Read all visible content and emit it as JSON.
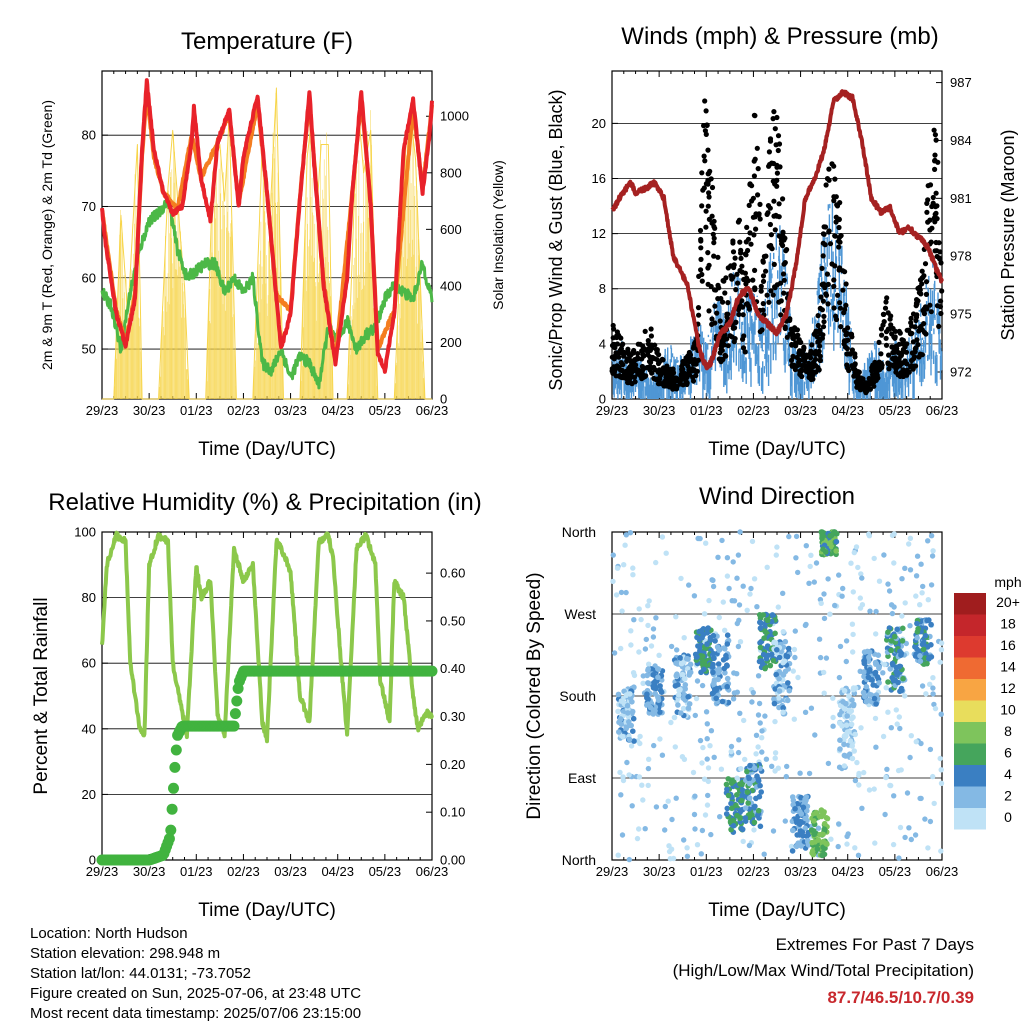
{
  "palette": {
    "temp2m": "#e8222a",
    "temp9m": "#f47d20",
    "dew": "#4cb847",
    "solar": "#f7d54a",
    "sonic": "#4f97d5",
    "gust": "#000000",
    "pressure": "#a52121",
    "rh": "#8cc84b",
    "precip": "#41b33f",
    "extreme": "#c8282d"
  },
  "info": {
    "location": "Location: North Hudson",
    "elevation": "Station elevation: 298.948 m",
    "latlon": "Station lat/lon: 44.0131; -73.7052",
    "created": "Figure created on Sun, 2025-07-06, at 23:48 UTC",
    "recent": "Most recent data timestamp: 2025/07/06 23:15:00"
  },
  "extremes": {
    "line1": "Extremes For Past 7 Days",
    "line2": "(High/Low/Max Wind/Total Precipitation)",
    "values": "87.7/46.5/10.7/0.39"
  },
  "chart_data": [
    {
      "type": "line",
      "title": "Temperature (F)",
      "xlabel": "Time (Day/UTC)",
      "ylabel": "2m & 9m T (Red, Orange) & 2m Td (Green)",
      "y2label": "Solar Insolation (Yellow)",
      "x_ticks": [
        "29/23",
        "30/23",
        "01/23",
        "02/23",
        "03/23",
        "04/23",
        "05/23",
        "06/23"
      ],
      "y_ticks": [
        50,
        60,
        70,
        80
      ],
      "y2_ticks": [
        0,
        200,
        400,
        600,
        800,
        1000
      ],
      "ylim": [
        43,
        89
      ],
      "y2lim": [
        0,
        1160
      ],
      "xlim": [
        0,
        7
      ],
      "series": [
        {
          "name": "2m T",
          "axis": "left",
          "x": [
            0,
            0.05,
            0.3,
            0.5,
            0.7,
            0.85,
            0.95,
            1.1,
            1.3,
            1.5,
            1.7,
            1.9,
            1.95,
            2.1,
            2.3,
            2.45,
            2.7,
            2.9,
            3.0,
            3.3,
            3.5,
            3.7,
            3.8,
            4.0,
            4.2,
            4.4,
            4.5,
            4.7,
            4.95,
            5.2,
            5.3,
            5.5,
            5.7,
            5.85,
            6.0,
            6.2,
            6.4,
            6.6,
            6.8,
            6.95,
            7
          ],
          "values": [
            70,
            66,
            55,
            50.5,
            57,
            78,
            87.5,
            78,
            72,
            69,
            70,
            79,
            84,
            74,
            68,
            79,
            83.5,
            70,
            77,
            85.5,
            72,
            57,
            50,
            55,
            71,
            86,
            76,
            59,
            48,
            60,
            71,
            86,
            70,
            49.5,
            47,
            55,
            78,
            85,
            72,
            80,
            85
          ]
        },
        {
          "name": "9m T",
          "axis": "left",
          "x": [
            0,
            0.3,
            0.5,
            0.7,
            0.85,
            0.95,
            1.1,
            1.3,
            1.6,
            1.9,
            2.1,
            2.45,
            2.7,
            2.9,
            3.3,
            3.5,
            3.7,
            4.0,
            4.2,
            4.4,
            4.7,
            4.95,
            5.3,
            5.5,
            5.7,
            5.85,
            6.2,
            6.6,
            6.8,
            7
          ],
          "values": [
            69.5,
            55.5,
            51,
            57.5,
            77,
            86,
            77,
            72,
            69.5,
            80,
            74,
            79,
            83,
            70.5,
            84.5,
            72,
            57.5,
            55.5,
            71.5,
            85,
            59.5,
            48.5,
            71.5,
            85,
            70.5,
            50,
            55.5,
            84,
            72.5,
            84
          ]
        },
        {
          "name": "2m Td",
          "axis": "left",
          "x": [
            0,
            0.2,
            0.4,
            0.6,
            0.8,
            1.0,
            1.2,
            1.4,
            1.6,
            1.8,
            2.0,
            2.2,
            2.4,
            2.6,
            2.8,
            3.0,
            3.2,
            3.4,
            3.6,
            3.8,
            4.0,
            4.2,
            4.4,
            4.6,
            4.8,
            5.0,
            5.2,
            5.4,
            5.6,
            5.8,
            6.0,
            6.2,
            6.4,
            6.6,
            6.8,
            7
          ],
          "values": [
            58,
            56,
            50,
            58,
            64,
            68,
            69,
            71,
            64,
            60,
            61,
            62,
            62,
            58,
            60,
            58,
            60,
            48,
            47,
            50,
            46,
            49,
            48,
            45,
            53,
            51,
            54,
            50,
            52,
            53,
            57,
            59,
            58,
            57,
            62,
            57
          ]
        },
        {
          "name": "Solar",
          "axis": "right",
          "x": [
            0,
            0.25,
            0.4,
            0.55,
            0.75,
            0.85,
            1.2,
            1.4,
            1.5,
            1.65,
            1.75,
            1.85,
            2.2,
            2.35,
            2.5,
            2.6,
            2.7,
            2.85,
            3.2,
            3.4,
            3.55,
            3.7,
            3.85,
            4.2,
            4.35,
            4.45,
            4.55,
            4.65,
            4.8,
            4.9,
            5.2,
            5.35,
            5.45,
            5.55,
            5.7,
            5.85,
            6.2,
            6.35,
            6.45,
            6.55,
            6.65,
            6.85,
            7
          ],
          "values": [
            0,
            0,
            650,
            300,
            900,
            0,
            0,
            750,
            950,
            600,
            400,
            0,
            0,
            800,
            900,
            700,
            1000,
            0,
            0,
            900,
            600,
            1100,
            0,
            0,
            850,
            1000,
            650,
            900,
            900,
            0,
            0,
            700,
            1000,
            800,
            950,
            0,
            0,
            600,
            900,
            1000,
            850,
            0,
            0
          ]
        }
      ]
    },
    {
      "type": "scatter",
      "title": "Winds (mph) & Pressure (mb)",
      "xlabel": "Time (Day/UTC)",
      "ylabel": "Sonic/Prop Wind & Gust (Blue, Black)",
      "y2label": "Station Pressure (Maroon)",
      "x_ticks": [
        "29/23",
        "30/23",
        "01/23",
        "02/23",
        "03/23",
        "04/23",
        "05/23",
        "06/23"
      ],
      "y_ticks": [
        0,
        4,
        8,
        12,
        16,
        20
      ],
      "y2_ticks": [
        972,
        975,
        978,
        981,
        984,
        987
      ],
      "ylim": [
        0,
        23.8
      ],
      "y2lim": [
        970.6,
        987.6
      ],
      "xlim": [
        0,
        7
      ],
      "series": [
        {
          "name": "Sonic/Prop Wind",
          "axis": "left",
          "x": [
            0,
            0.2,
            0.4,
            0.6,
            0.8,
            1.0,
            1.2,
            1.4,
            1.6,
            1.8,
            2.0,
            2.2,
            2.4,
            2.6,
            2.8,
            3.0,
            3.2,
            3.4,
            3.6,
            3.8,
            4.0,
            4.2,
            4.4,
            4.6,
            4.8,
            5.0,
            5.2,
            5.4,
            5.6,
            5.8,
            6.0,
            6.2,
            6.4,
            6.6,
            6.8,
            7
          ],
          "values": [
            2,
            3,
            1.5,
            2.5,
            1,
            1.5,
            3,
            2,
            2.5,
            4,
            3,
            6,
            4,
            7,
            5,
            6,
            4,
            8,
            9,
            4,
            2,
            3,
            7,
            10,
            9,
            5,
            1,
            2,
            3,
            1.5,
            3,
            2,
            4,
            5,
            7,
            4
          ]
        },
        {
          "name": "Gust",
          "axis": "left",
          "x": [
            0,
            0.2,
            0.4,
            0.6,
            0.8,
            1.0,
            1.2,
            1.4,
            1.6,
            1.8,
            1.95,
            2.1,
            2.3,
            2.5,
            2.7,
            2.8,
            2.9,
            3.05,
            3.2,
            3.35,
            3.5,
            3.65,
            3.8,
            4.0,
            4.2,
            4.4,
            4.55,
            4.7,
            4.85,
            5.0,
            5.2,
            5.4,
            5.6,
            5.8,
            6.0,
            6.2,
            6.4,
            6.6,
            6.8,
            6.9,
            7
          ],
          "values": [
            5,
            4,
            3,
            4,
            5,
            3,
            2,
            2,
            3,
            4,
            21.5,
            16,
            7,
            10,
            12,
            8,
            14,
            20,
            9,
            18,
            21,
            12,
            6,
            4,
            3,
            6,
            15,
            17,
            13,
            6,
            2,
            1,
            3,
            7,
            5,
            4,
            6,
            9,
            19,
            17,
            9
          ]
        },
        {
          "name": "Pressure",
          "axis": "right",
          "x": [
            0,
            0.2,
            0.4,
            0.5,
            0.7,
            0.9,
            1.1,
            1.3,
            1.6,
            1.85,
            2.0,
            2.1,
            2.3,
            2.5,
            2.7,
            2.9,
            3.1,
            3.3,
            3.5,
            3.7,
            3.9,
            4.1,
            4.3,
            4.5,
            4.7,
            4.9,
            5.1,
            5.3,
            5.5,
            5.7,
            5.9,
            6.1,
            6.3,
            6.5,
            6.7,
            6.9,
            7
          ],
          "values": [
            980.3,
            981.2,
            981.8,
            981.3,
            981.5,
            981.8,
            981,
            978,
            976.5,
            973.2,
            972.2,
            972.5,
            974,
            974.5,
            976,
            976.3,
            975,
            974.5,
            974,
            975,
            977.5,
            981,
            982,
            983.5,
            986,
            986.5,
            986.2,
            984,
            981,
            980.3,
            980.5,
            979.2,
            979.5,
            979,
            978.5,
            977.2,
            976.7
          ]
        }
      ]
    },
    {
      "type": "line",
      "title": "Relative Humidity (%) & Precipitation (in)",
      "xlabel": "Time (Day/UTC)",
      "ylabel": "Percent & Total Rainfall",
      "x_ticks": [
        "29/23",
        "30/23",
        "01/23",
        "02/23",
        "03/23",
        "04/23",
        "05/23",
        "06/23"
      ],
      "y_ticks": [
        0,
        20,
        40,
        60,
        80,
        100
      ],
      "y2_ticks": [
        "0.00",
        "0.10",
        "0.20",
        "0.30",
        "0.40",
        "0.50",
        "0.60"
      ],
      "ylim": [
        0,
        100
      ],
      "y2lim": [
        0,
        0.686
      ],
      "xlim": [
        0,
        7
      ],
      "series": [
        {
          "name": "Relative Humidity",
          "axis": "left",
          "x": [
            0,
            0.1,
            0.3,
            0.5,
            0.6,
            0.8,
            0.9,
            1.0,
            1.2,
            1.4,
            1.5,
            1.7,
            1.8,
            2.0,
            2.1,
            2.3,
            2.45,
            2.6,
            2.8,
            3.0,
            3.2,
            3.4,
            3.5,
            3.7,
            3.8,
            4.0,
            4.2,
            4.4,
            4.6,
            4.8,
            4.9,
            5.1,
            5.2,
            5.4,
            5.6,
            5.8,
            5.9,
            6.1,
            6.2,
            6.4,
            6.6,
            6.7,
            6.9,
            7
          ],
          "values": [
            65,
            90,
            99,
            97,
            60,
            40,
            38,
            90,
            99,
            97,
            60,
            45,
            38,
            90,
            80,
            85,
            45,
            38,
            95,
            85,
            90,
            42,
            37,
            97,
            95,
            88,
            50,
            42,
            97,
            99,
            92,
            55,
            38,
            95,
            99,
            90,
            55,
            42,
            85,
            80,
            50,
            40,
            45,
            44
          ]
        },
        {
          "name": "Total Precipitation",
          "axis": "right",
          "x": [
            0,
            0.5,
            1.0,
            1.3,
            1.45,
            1.55,
            1.6,
            1.7,
            2.0,
            2.5,
            2.8,
            2.9,
            3.0,
            3.4,
            3.8,
            4.2,
            4.6,
            5.0,
            5.4,
            5.8,
            6.2,
            6.6,
            7
          ],
          "values": [
            0,
            0,
            0,
            0.01,
            0.05,
            0.2,
            0.26,
            0.28,
            0.28,
            0.28,
            0.28,
            0.37,
            0.395,
            0.395,
            0.395,
            0.395,
            0.395,
            0.395,
            0.395,
            0.395,
            0.395,
            0.395,
            0.395
          ]
        }
      ]
    },
    {
      "type": "scatter",
      "title": "Wind Direction",
      "xlabel": "Time (Day/UTC)",
      "ylabel": "Direction (Colored By Speed)",
      "x_ticks": [
        "29/23",
        "30/23",
        "01/23",
        "02/23",
        "03/23",
        "04/23",
        "05/23",
        "06/23"
      ],
      "y_ticks": [
        "North",
        "East",
        "South",
        "West",
        "North"
      ],
      "ylim": [
        0,
        360
      ],
      "xlim": [
        0,
        7
      ],
      "colorbar": {
        "title": "mph",
        "labels": [
          "20+",
          "18",
          "16",
          "14",
          "12",
          "10",
          "8",
          "6",
          "4",
          "2",
          "0"
        ],
        "colors": [
          "#a01d1e",
          "#c4262b",
          "#dd3a2f",
          "#ef6a32",
          "#f8a543",
          "#e8dd5c",
          "#7ec45c",
          "#45a55c",
          "#3a7fc2",
          "#84b9e4",
          "#bfe2f6"
        ]
      },
      "clusters": [
        {
          "x": 0.3,
          "dir": 160,
          "spread": 30,
          "speed": 2
        },
        {
          "x": 0.9,
          "dir": 185,
          "spread": 25,
          "speed": 3
        },
        {
          "x": 1.5,
          "dir": 190,
          "spread": 35,
          "speed": 2
        },
        {
          "x": 1.95,
          "dir": 230,
          "spread": 25,
          "speed": 5
        },
        {
          "x": 2.3,
          "dir": 210,
          "spread": 40,
          "speed": 3
        },
        {
          "x": 2.6,
          "dir": 60,
          "spread": 30,
          "speed": 5
        },
        {
          "x": 3.0,
          "dir": 70,
          "spread": 35,
          "speed": 4
        },
        {
          "x": 3.3,
          "dir": 240,
          "spread": 30,
          "speed": 5
        },
        {
          "x": 3.6,
          "dir": 200,
          "spread": 40,
          "speed": 2
        },
        {
          "x": 4.0,
          "dir": 40,
          "spread": 30,
          "speed": 3
        },
        {
          "x": 4.4,
          "dir": 30,
          "spread": 25,
          "speed": 7
        },
        {
          "x": 4.6,
          "dir": 350,
          "spread": 15,
          "speed": 6
        },
        {
          "x": 5.0,
          "dir": 150,
          "spread": 40,
          "speed": 1
        },
        {
          "x": 5.5,
          "dir": 200,
          "spread": 30,
          "speed": 3
        },
        {
          "x": 6.0,
          "dir": 220,
          "spread": 35,
          "speed": 4
        },
        {
          "x": 6.6,
          "dir": 240,
          "spread": 25,
          "speed": 4
        }
      ]
    }
  ]
}
